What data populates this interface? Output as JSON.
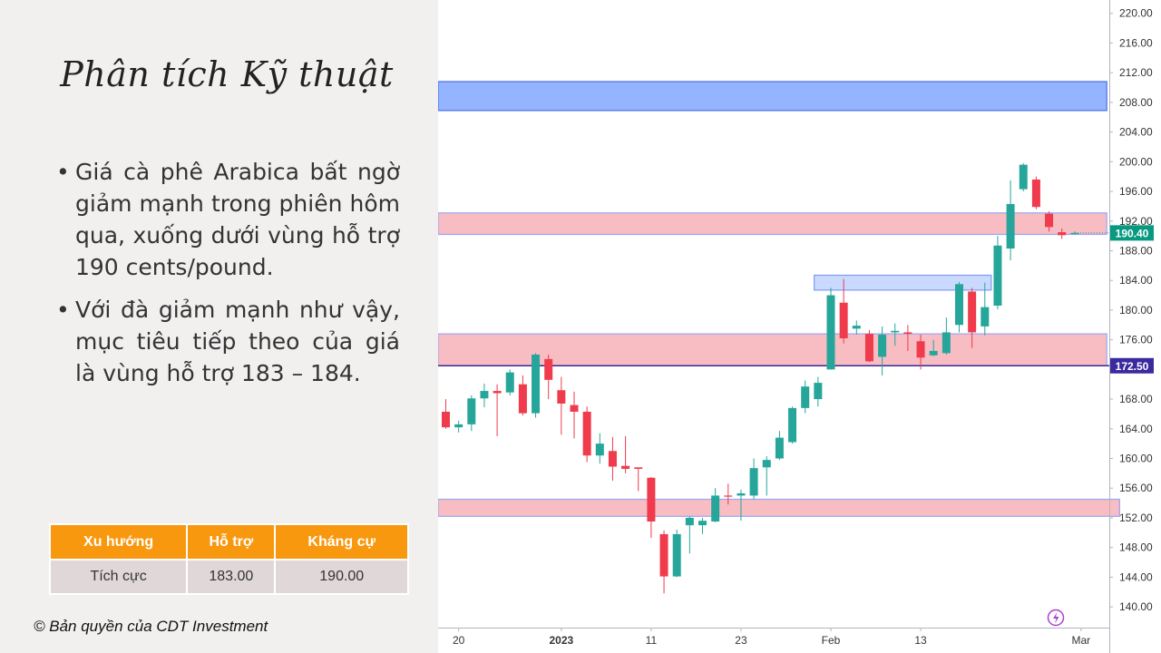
{
  "title": "Phân tích Kỹ thuật",
  "bullets": [
    "Giá cà phê Arabica bất ngờ giảm mạnh trong phiên hôm qua, xuống dưới vùng hỗ trợ 190 cents/pound.",
    "Với đà giảm mạnh như vậy, mục tiêu tiếp theo của giá là vùng hỗ trợ 183 – 184."
  ],
  "table": {
    "headers": [
      "Xu hướng",
      "Hỗ trợ",
      "Kháng cự"
    ],
    "row": [
      "Tích cực",
      "183.00",
      "190.00"
    ]
  },
  "copyright": "© Bản quyền của CDT Investment",
  "colors": {
    "up": "#26a69a",
    "down": "#ef3b4b",
    "zone_red": "#f8bcc3",
    "zone_blue": "#94b4ff",
    "zone_light_blue": "#c9d9ff",
    "header_orange": "#f8980f",
    "support_line": "#3a2a9e",
    "price_label": "#089981"
  },
  "chart_data": {
    "type": "candlestick",
    "yaxis": {
      "ylim": [
        137.2,
        221.8
      ],
      "ticks": [
        "220.00",
        "216.00",
        "212.00",
        "208.00",
        "204.00",
        "200.00",
        "196.00",
        "192.00",
        "188.00",
        "184.00",
        "180.00",
        "176.00",
        "172.00",
        "168.00",
        "164.00",
        "160.00",
        "156.00",
        "152.00",
        "148.00",
        "144.00",
        "140.00"
      ]
    },
    "xaxis": {
      "ticks": [
        {
          "label": "20",
          "index": 1
        },
        {
          "label": "2023",
          "index": 9
        },
        {
          "label": "11",
          "index": 16
        },
        {
          "label": "23",
          "index": 23
        },
        {
          "label": "Feb",
          "index": 30
        },
        {
          "label": "13",
          "index": 37
        },
        {
          "label": "Mar",
          "index": 49
        }
      ],
      "bold": [
        "2023"
      ]
    },
    "candles": [
      [
        166.3,
        168.0,
        164.0,
        164.2
      ],
      [
        164.2,
        165.1,
        163.5,
        164.6
      ],
      [
        164.6,
        168.5,
        163.7,
        168.1
      ],
      [
        168.1,
        170.1,
        166.9,
        169.1
      ],
      [
        169.1,
        170.0,
        163.0,
        168.8
      ],
      [
        168.9,
        172.0,
        168.5,
        171.6
      ],
      [
        170.0,
        171.2,
        165.8,
        166.1
      ],
      [
        166.1,
        174.2,
        165.5,
        174.0
      ],
      [
        173.4,
        174.0,
        168.0,
        170.6
      ],
      [
        169.2,
        171.0,
        163.2,
        167.4
      ],
      [
        167.2,
        169.0,
        162.7,
        166.3
      ],
      [
        166.3,
        167.0,
        159.5,
        160.4
      ],
      [
        160.4,
        163.4,
        159.3,
        162.0
      ],
      [
        161.0,
        162.9,
        157.0,
        158.9
      ],
      [
        159.0,
        163.0,
        158.0,
        158.6
      ],
      [
        158.8,
        158.8,
        155.6,
        158.6
      ],
      [
        157.4,
        157.5,
        149.3,
        151.5
      ],
      [
        149.8,
        150.3,
        141.8,
        144.1
      ],
      [
        144.1,
        150.4,
        144.0,
        149.8
      ],
      [
        151.0,
        152.2,
        147.2,
        152.0
      ],
      [
        151.0,
        152.0,
        149.8,
        151.6
      ],
      [
        151.5,
        156.0,
        151.4,
        155.0
      ],
      [
        155.0,
        156.6,
        153.8,
        154.9
      ],
      [
        155.0,
        155.8,
        151.6,
        155.3
      ],
      [
        155.0,
        160.0,
        154.5,
        158.7
      ],
      [
        158.8,
        160.3,
        155.0,
        159.8
      ],
      [
        160.0,
        163.7,
        159.8,
        162.8
      ],
      [
        162.2,
        167.0,
        162.0,
        166.8
      ],
      [
        166.8,
        170.5,
        166.1,
        169.7
      ],
      [
        168.0,
        171.0,
        167.0,
        170.2
      ],
      [
        172.0,
        183.0,
        172.0,
        182.0
      ],
      [
        181.0,
        184.2,
        175.5,
        176.2
      ],
      [
        177.5,
        178.6,
        176.7,
        177.9
      ],
      [
        176.8,
        177.3,
        173.0,
        173.1
      ],
      [
        173.7,
        177.8,
        171.2,
        176.7
      ],
      [
        177.0,
        178.2,
        175.2,
        177.2
      ],
      [
        177.0,
        178.0,
        174.5,
        176.8
      ],
      [
        175.8,
        176.7,
        172.0,
        173.6
      ],
      [
        173.9,
        176.0,
        173.8,
        174.5
      ],
      [
        174.2,
        179.0,
        174.0,
        177.0
      ],
      [
        178.0,
        183.8,
        177.0,
        183.5
      ],
      [
        182.5,
        183.0,
        174.9,
        177.0
      ],
      [
        177.8,
        183.7,
        176.6,
        180.4
      ],
      [
        180.6,
        190.0,
        180.1,
        188.7
      ],
      [
        188.3,
        197.5,
        186.7,
        194.3
      ],
      [
        196.3,
        199.8,
        196.0,
        199.6
      ],
      [
        197.6,
        198.0,
        193.6,
        193.9
      ],
      [
        193.0,
        193.3,
        190.6,
        191.2
      ],
      [
        190.5,
        191.0,
        189.6,
        190.1
      ],
      [
        190.4,
        190.6,
        190.2,
        190.4
      ]
    ],
    "zones": [
      {
        "low": 206.9,
        "high": 210.8,
        "color": "blue",
        "start": 0,
        "end": 51.5
      },
      {
        "low": 190.2,
        "high": 193.1,
        "color": "red",
        "start": 0,
        "end": 51.5
      },
      {
        "low": 182.7,
        "high": 184.7,
        "color": "light_blue",
        "start": 28.7,
        "end": 42.5
      },
      {
        "low": 172.5,
        "high": 176.8,
        "color": "red",
        "start": 0,
        "end": 51.5
      },
      {
        "low": 152.2,
        "high": 154.5,
        "color": "red",
        "start": 0,
        "end": 52.5
      }
    ],
    "support_line": 172.5,
    "labels": [
      {
        "value": 190.4,
        "text": "190.40"
      },
      {
        "value": 172.5,
        "text": "172.50"
      }
    ]
  }
}
